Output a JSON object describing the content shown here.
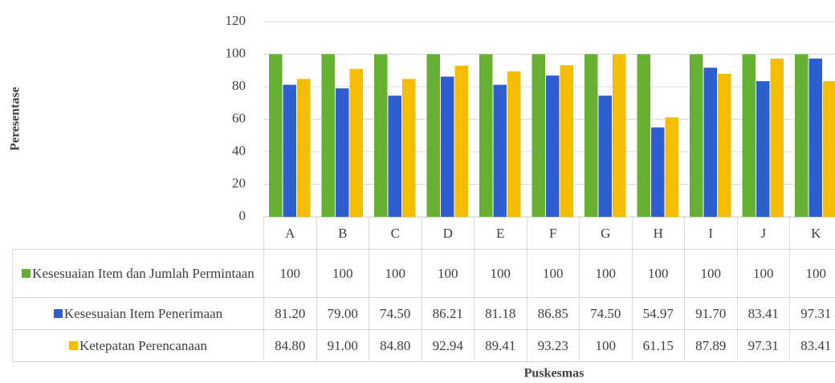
{
  "chart_data": {
    "type": "bar",
    "x_label": "Puskesmas",
    "y_label": "Peresentase",
    "categories": [
      "A",
      "B",
      "C",
      "D",
      "E",
      "F",
      "G",
      "H",
      "I",
      "J",
      "K"
    ],
    "series": [
      {
        "name": "Kesesuaian Item dan Jumlah Permintaan",
        "color": "#66b032",
        "values": [
          100,
          100,
          100,
          100,
          100,
          100,
          100,
          100,
          100,
          100,
          100
        ]
      },
      {
        "name": "Kesesuaian Item Penerimaan",
        "color": "#2e5fd0",
        "values": [
          81.2,
          79,
          74.5,
          86.21,
          81.18,
          86.85,
          74.5,
          54.97,
          91.7,
          83.41,
          97.31
        ],
        "value_labels": [
          "81.20",
          "79.00",
          "74.50",
          "86.21",
          "81.18",
          "86.85",
          "74.50",
          "54.97",
          "91.70",
          "83.41",
          "97.31"
        ]
      },
      {
        "name": "Ketepatan Perencanaan",
        "color": "#f5bd00",
        "values": [
          84.8,
          91,
          84.8,
          92.94,
          89.41,
          93.23,
          100,
          61.15,
          87.89,
          97.31,
          83.41
        ],
        "value_labels": [
          "84.80",
          "91.00",
          "84.80",
          "92.94",
          "89.41",
          "93.23",
          "100",
          "61.15",
          "87.89",
          "97.31",
          "83.41"
        ]
      }
    ],
    "ylim": [
      0,
      120
    ],
    "yticks": [
      0,
      20,
      40,
      60,
      80,
      100,
      120
    ],
    "grid": true
  }
}
